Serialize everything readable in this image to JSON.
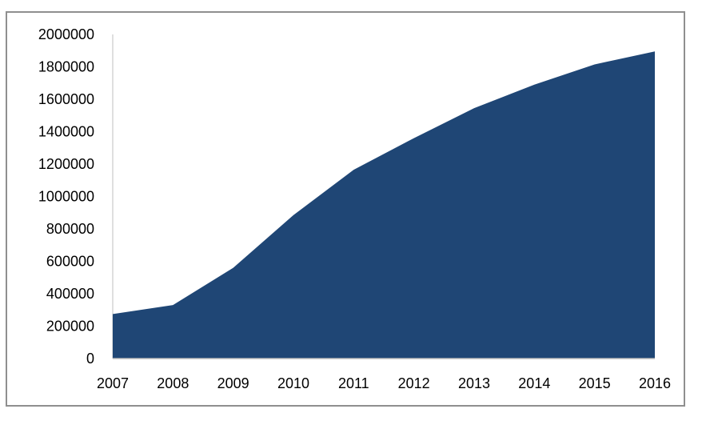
{
  "chart_data": {
    "type": "area",
    "title": "",
    "xlabel": "",
    "ylabel": "",
    "x": [
      "2007",
      "2008",
      "2009",
      "2010",
      "2011",
      "2012",
      "2013",
      "2014",
      "2015",
      "2016"
    ],
    "series": [
      {
        "values": [
          275000,
          330000,
          560000,
          885000,
          1165000,
          1360000,
          1545000,
          1690000,
          1815000,
          1895000
        ],
        "color": "#1f4675"
      }
    ],
    "ylim": [
      0,
      2000000
    ],
    "yticks": [
      "0",
      "200000",
      "400000",
      "600000",
      "800000",
      "1000000",
      "1200000",
      "1400000",
      "1600000",
      "1800000",
      "2000000"
    ],
    "grid": false,
    "legend": "none",
    "colors": {
      "area_fill": "#1f4675",
      "border": "#8f8f8f",
      "axis": "#bfbfbf"
    }
  }
}
